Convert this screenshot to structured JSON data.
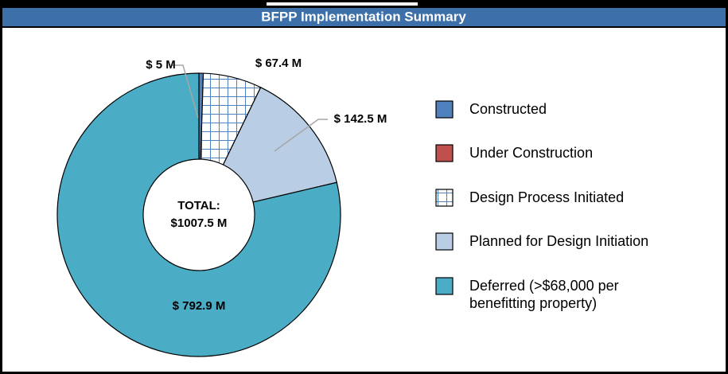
{
  "chart_data": {
    "type": "donut",
    "title": "BFPP Implementation Summary",
    "center_label": [
      "TOTAL:",
      "$1007.5 M"
    ],
    "categories": [
      "Constructed",
      "Under Construction",
      "Design Process Initiated",
      "Planned for Design Initiation",
      "Deferred (>$68,000 per benefitting property)"
    ],
    "values": [
      5,
      0,
      67.4,
      142.5,
      792.9
    ],
    "value_labels": [
      "$ 5 M",
      null,
      "$ 67.4 M",
      "$ 142.5 M",
      "$ 792.9 M"
    ],
    "colors": [
      "#4f81bd",
      "#c0504d",
      "#4f81bd",
      "#b9cde5",
      "#4bacc6"
    ],
    "hatch": [
      false,
      false,
      true,
      false,
      false
    ],
    "legend": "right"
  }
}
